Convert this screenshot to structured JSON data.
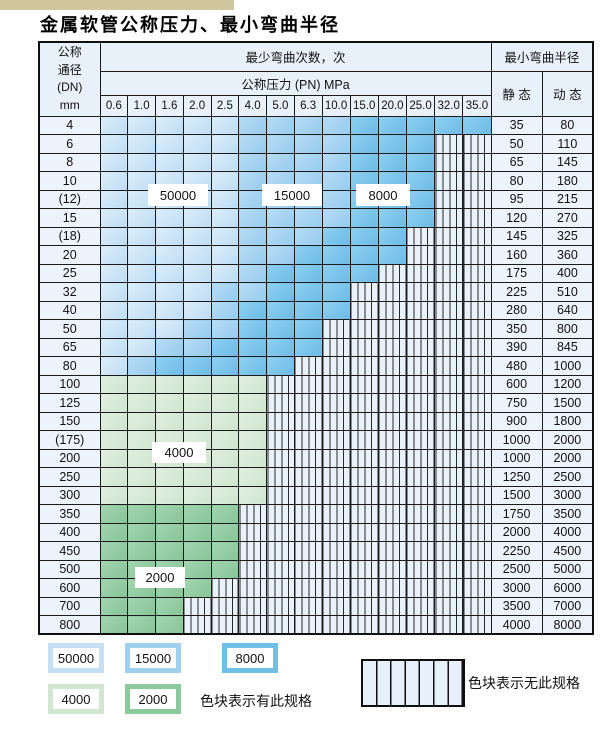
{
  "title": "金属软管公称压力、最小弯曲半径",
  "chart_data": {
    "type": "table",
    "title": "金属软管公称压力、最小弯曲半径",
    "header": {
      "dn_line1": "公称",
      "dn_line2": "通径",
      "dn_line3": "(DN)",
      "dn_line4": "mm",
      "bend_cycles": "最少弯曲次数，次",
      "pressure": "公称压力 (PN) MPa",
      "radius": "最小弯曲半径",
      "static": "静 态",
      "dynamic": "动 态"
    },
    "columns": [
      "0.6",
      "1.0",
      "1.6",
      "2.0",
      "2.5",
      "4.0",
      "5.0",
      "6.3",
      "10.0",
      "15.0",
      "20.0",
      "25.0",
      "32.0",
      "35.0"
    ],
    "zone_legend": {
      "L": "50000",
      "M": "15000",
      "D": "8000",
      "G": "4000",
      "E": "2000",
      "H": "无此规格"
    },
    "rows": [
      {
        "dn": "4",
        "static": "35",
        "dynamic": "80",
        "zones": [
          [
            "L",
            0,
            4
          ],
          [
            "M",
            5,
            8
          ],
          [
            "D",
            9,
            13
          ]
        ]
      },
      {
        "dn": "6",
        "static": "50",
        "dynamic": "110",
        "zones": [
          [
            "L",
            0,
            4
          ],
          [
            "M",
            5,
            8
          ],
          [
            "D",
            9,
            11
          ],
          [
            "H",
            12,
            13
          ]
        ]
      },
      {
        "dn": "8",
        "static": "65",
        "dynamic": "145",
        "zones": [
          [
            "L",
            0,
            4
          ],
          [
            "M",
            5,
            8
          ],
          [
            "D",
            9,
            11
          ],
          [
            "H",
            12,
            13
          ]
        ]
      },
      {
        "dn": "10",
        "static": "80",
        "dynamic": "180",
        "zones": [
          [
            "L",
            0,
            4
          ],
          [
            "M",
            5,
            8
          ],
          [
            "D",
            9,
            11
          ],
          [
            "H",
            12,
            13
          ]
        ]
      },
      {
        "dn": "(12)",
        "static": "95",
        "dynamic": "215",
        "zones": [
          [
            "L",
            0,
            4
          ],
          [
            "M",
            5,
            8
          ],
          [
            "D",
            9,
            11
          ],
          [
            "H",
            12,
            13
          ]
        ]
      },
      {
        "dn": "15",
        "static": "120",
        "dynamic": "270",
        "zones": [
          [
            "L",
            0,
            4
          ],
          [
            "M",
            5,
            8
          ],
          [
            "D",
            9,
            11
          ],
          [
            "H",
            12,
            13
          ]
        ]
      },
      {
        "dn": "(18)",
        "static": "145",
        "dynamic": "325",
        "zones": [
          [
            "L",
            0,
            4
          ],
          [
            "M",
            5,
            7
          ],
          [
            "D",
            8,
            10
          ],
          [
            "H",
            11,
            13
          ]
        ]
      },
      {
        "dn": "20",
        "static": "160",
        "dynamic": "360",
        "zones": [
          [
            "L",
            0,
            4
          ],
          [
            "M",
            5,
            6
          ],
          [
            "D",
            7,
            10
          ],
          [
            "H",
            11,
            13
          ]
        ]
      },
      {
        "dn": "25",
        "static": "175",
        "dynamic": "400",
        "zones": [
          [
            "L",
            0,
            4
          ],
          [
            "M",
            5,
            5
          ],
          [
            "D",
            6,
            9
          ],
          [
            "H",
            10,
            13
          ]
        ]
      },
      {
        "dn": "32",
        "static": "225",
        "dynamic": "510",
        "zones": [
          [
            "L",
            0,
            3
          ],
          [
            "M",
            4,
            5
          ],
          [
            "D",
            6,
            8
          ],
          [
            "H",
            9,
            13
          ]
        ]
      },
      {
        "dn": "40",
        "static": "280",
        "dynamic": "640",
        "zones": [
          [
            "L",
            0,
            3
          ],
          [
            "M",
            4,
            4
          ],
          [
            "D",
            5,
            8
          ],
          [
            "H",
            9,
            13
          ]
        ]
      },
      {
        "dn": "50",
        "static": "350",
        "dynamic": "800",
        "zones": [
          [
            "L",
            0,
            2
          ],
          [
            "M",
            3,
            4
          ],
          [
            "D",
            5,
            7
          ],
          [
            "H",
            8,
            13
          ]
        ]
      },
      {
        "dn": "65",
        "static": "390",
        "dynamic": "845",
        "zones": [
          [
            "L",
            0,
            1
          ],
          [
            "M",
            2,
            3
          ],
          [
            "D",
            4,
            7
          ],
          [
            "H",
            8,
            13
          ]
        ]
      },
      {
        "dn": "80",
        "static": "480",
        "dynamic": "1000",
        "zones": [
          [
            "L",
            0,
            0
          ],
          [
            "M",
            1,
            1
          ],
          [
            "D",
            2,
            6
          ],
          [
            "H",
            7,
            13
          ]
        ]
      },
      {
        "dn": "100",
        "static": "600",
        "dynamic": "1200",
        "zones": [
          [
            "G",
            0,
            5
          ],
          [
            "H",
            6,
            13
          ]
        ]
      },
      {
        "dn": "125",
        "static": "750",
        "dynamic": "1500",
        "zones": [
          [
            "G",
            0,
            5
          ],
          [
            "H",
            6,
            13
          ]
        ]
      },
      {
        "dn": "150",
        "static": "900",
        "dynamic": "1800",
        "zones": [
          [
            "G",
            0,
            5
          ],
          [
            "H",
            6,
            13
          ]
        ]
      },
      {
        "dn": "(175)",
        "static": "1000",
        "dynamic": "2000",
        "zones": [
          [
            "G",
            0,
            5
          ],
          [
            "H",
            6,
            13
          ]
        ]
      },
      {
        "dn": "200",
        "static": "1000",
        "dynamic": "2000",
        "zones": [
          [
            "G",
            0,
            5
          ],
          [
            "H",
            6,
            13
          ]
        ]
      },
      {
        "dn": "250",
        "static": "1250",
        "dynamic": "2500",
        "zones": [
          [
            "G",
            0,
            5
          ],
          [
            "H",
            6,
            13
          ]
        ]
      },
      {
        "dn": "300",
        "static": "1500",
        "dynamic": "3000",
        "zones": [
          [
            "G",
            0,
            5
          ],
          [
            "H",
            6,
            13
          ]
        ]
      },
      {
        "dn": "350",
        "static": "1750",
        "dynamic": "3500",
        "zones": [
          [
            "E",
            0,
            4
          ],
          [
            "H",
            5,
            13
          ]
        ]
      },
      {
        "dn": "400",
        "static": "2000",
        "dynamic": "4000",
        "zones": [
          [
            "E",
            0,
            4
          ],
          [
            "H",
            5,
            13
          ]
        ]
      },
      {
        "dn": "450",
        "static": "2250",
        "dynamic": "4500",
        "zones": [
          [
            "E",
            0,
            4
          ],
          [
            "H",
            5,
            13
          ]
        ]
      },
      {
        "dn": "500",
        "static": "2500",
        "dynamic": "5000",
        "zones": [
          [
            "E",
            0,
            4
          ],
          [
            "H",
            5,
            13
          ]
        ]
      },
      {
        "dn": "600",
        "static": "3000",
        "dynamic": "6000",
        "zones": [
          [
            "E",
            0,
            3
          ],
          [
            "H",
            4,
            13
          ]
        ]
      },
      {
        "dn": "700",
        "static": "3500",
        "dynamic": "7000",
        "zones": [
          [
            "E",
            0,
            2
          ],
          [
            "H",
            3,
            13
          ]
        ]
      },
      {
        "dn": "800",
        "static": "4000",
        "dynamic": "8000",
        "zones": [
          [
            "E",
            0,
            2
          ],
          [
            "H",
            3,
            13
          ]
        ]
      }
    ],
    "zone_labels": [
      "50000",
      "15000",
      "8000",
      "4000",
      "2000"
    ]
  },
  "legend": {
    "items": [
      {
        "label": "50000",
        "color": "#c5e0f5"
      },
      {
        "label": "15000",
        "color": "#9fd0ee"
      },
      {
        "label": "8000",
        "color": "#6fc0e8"
      },
      {
        "label": "4000",
        "color": "#d2e7d2"
      },
      {
        "label": "2000",
        "color": "#8cca9c"
      }
    ],
    "has_spec_text": "色块表示有此规格",
    "no_spec_text": "色块表示无此规格"
  },
  "colors": {
    "blue_50000": "#c5e0f5",
    "blue_15000": "#9fd0ee",
    "blue_8000": "#6fc0e8",
    "green_4000": "#d2e7d2",
    "green_2000": "#8cca9c",
    "hatch_bg": "#e9f1fb",
    "header_bg": "#e8f1fa",
    "scan_bar": "#d0c79f"
  }
}
